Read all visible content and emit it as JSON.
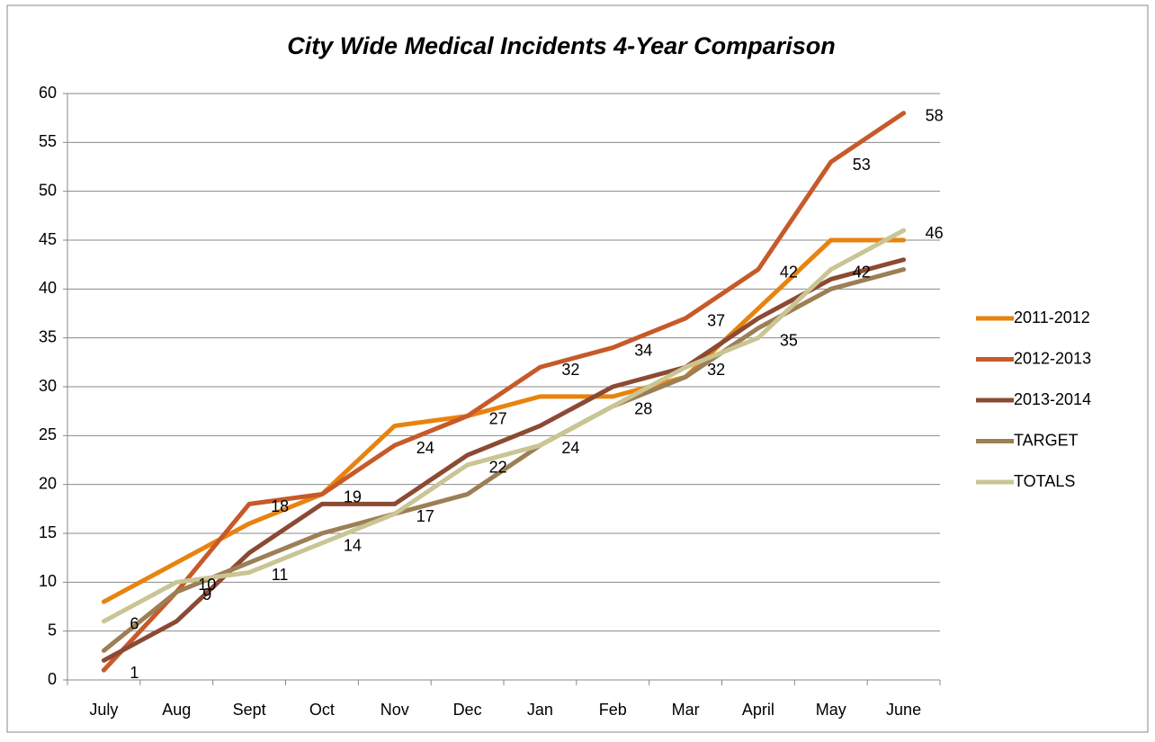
{
  "chart_data": {
    "type": "line",
    "title": "City Wide Medical Incidents 4-Year Comparison",
    "categories": [
      "July",
      "Aug",
      "Sept",
      "Oct",
      "Nov",
      "Dec",
      "Jan",
      "Feb",
      "Mar",
      "April",
      "May",
      "June"
    ],
    "series": [
      {
        "name": "2011-2012",
        "color": "#e8830f",
        "values": [
          8,
          12,
          16,
          19,
          26,
          27,
          29,
          29,
          31,
          38,
          45,
          45
        ]
      },
      {
        "name": "2012-2013",
        "color": "#c65a2a",
        "values": [
          1,
          9,
          18,
          19,
          24,
          27,
          32,
          34,
          37,
          42,
          53,
          58
        ],
        "data_labels": true
      },
      {
        "name": "2013-2014",
        "color": "#8b4a33",
        "values": [
          2,
          6,
          13,
          18,
          18,
          23,
          26,
          30,
          32,
          37,
          41,
          43
        ]
      },
      {
        "name": "TARGET",
        "color": "#9c7f56",
        "values": [
          3,
          9,
          12,
          15,
          17,
          19,
          24,
          28,
          31,
          36,
          40,
          42
        ]
      },
      {
        "name": "TOTALS",
        "color": "#c9c594",
        "values": [
          6,
          10,
          11,
          14,
          17,
          22,
          24,
          28,
          32,
          35,
          42,
          46
        ],
        "data_labels": true
      }
    ],
    "ylim": [
      0,
      60
    ],
    "yticks": [
      0,
      5,
      10,
      15,
      20,
      25,
      30,
      35,
      40,
      45,
      50,
      55,
      60
    ],
    "grid": true,
    "legend": "right"
  }
}
